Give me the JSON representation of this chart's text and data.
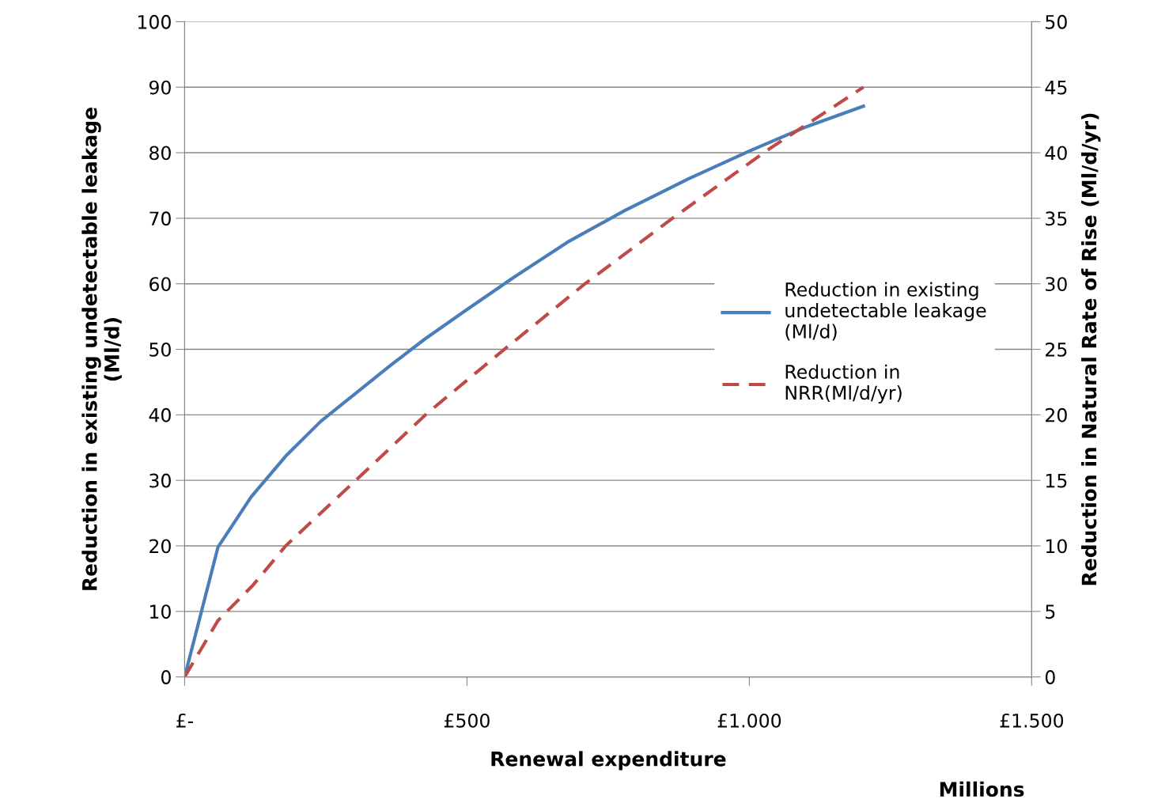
{
  "chart_data": {
    "type": "line",
    "xlabel": "Renewal expenditure",
    "ylabel": "Reduction in existing undetectable leakage\n(Ml/d)",
    "y2label": "Reduction in Natural Rate of Rise (Ml/d/yr)",
    "annotations": [
      "Millions"
    ],
    "xlim": [
      0,
      1500
    ],
    "xticks": [
      {
        "value": 0,
        "label": "£-"
      },
      {
        "value": 500,
        "label": "£500"
      },
      {
        "value": 1000,
        "label": "£1.000"
      },
      {
        "value": 1500,
        "label": "£1.500"
      }
    ],
    "ylim": [
      0,
      100
    ],
    "yticks": [
      0,
      10,
      20,
      30,
      40,
      50,
      60,
      70,
      80,
      90,
      100
    ],
    "y2lim": [
      0,
      50
    ],
    "y2ticks": [
      0,
      5,
      10,
      15,
      20,
      25,
      30,
      35,
      40,
      45,
      50
    ],
    "grid": "y",
    "legend": "right",
    "series": [
      {
        "name": "Reduction in existing\nundetectable leakage\n(Ml/d)",
        "color": "#4a7ebb",
        "line_style": "solid",
        "x": [
          0,
          59,
          118,
          179,
          241,
          303,
          364,
          426,
          499,
          583,
          681,
          780,
          892,
          1001,
          1102,
          1202
        ],
        "values": [
          0,
          19.8,
          27.5,
          33.7,
          39,
          43.3,
          47.5,
          51.6,
          56,
          61,
          66.5,
          71.2,
          76,
          80.3,
          84,
          87.1
        ]
      },
      {
        "name": "Reduction in\nNRR(Ml/d/yr)",
        "color": "#be4b48",
        "line_style": "dashed",
        "axis": "y2",
        "x": [
          0,
          59,
          121,
          179,
          303,
          429,
          569,
          709,
          864,
          1032,
          1202
        ],
        "values": [
          0,
          4.3,
          7,
          10,
          15,
          20.1,
          25.1,
          30,
          35,
          40.2,
          45
        ]
      }
    ]
  }
}
